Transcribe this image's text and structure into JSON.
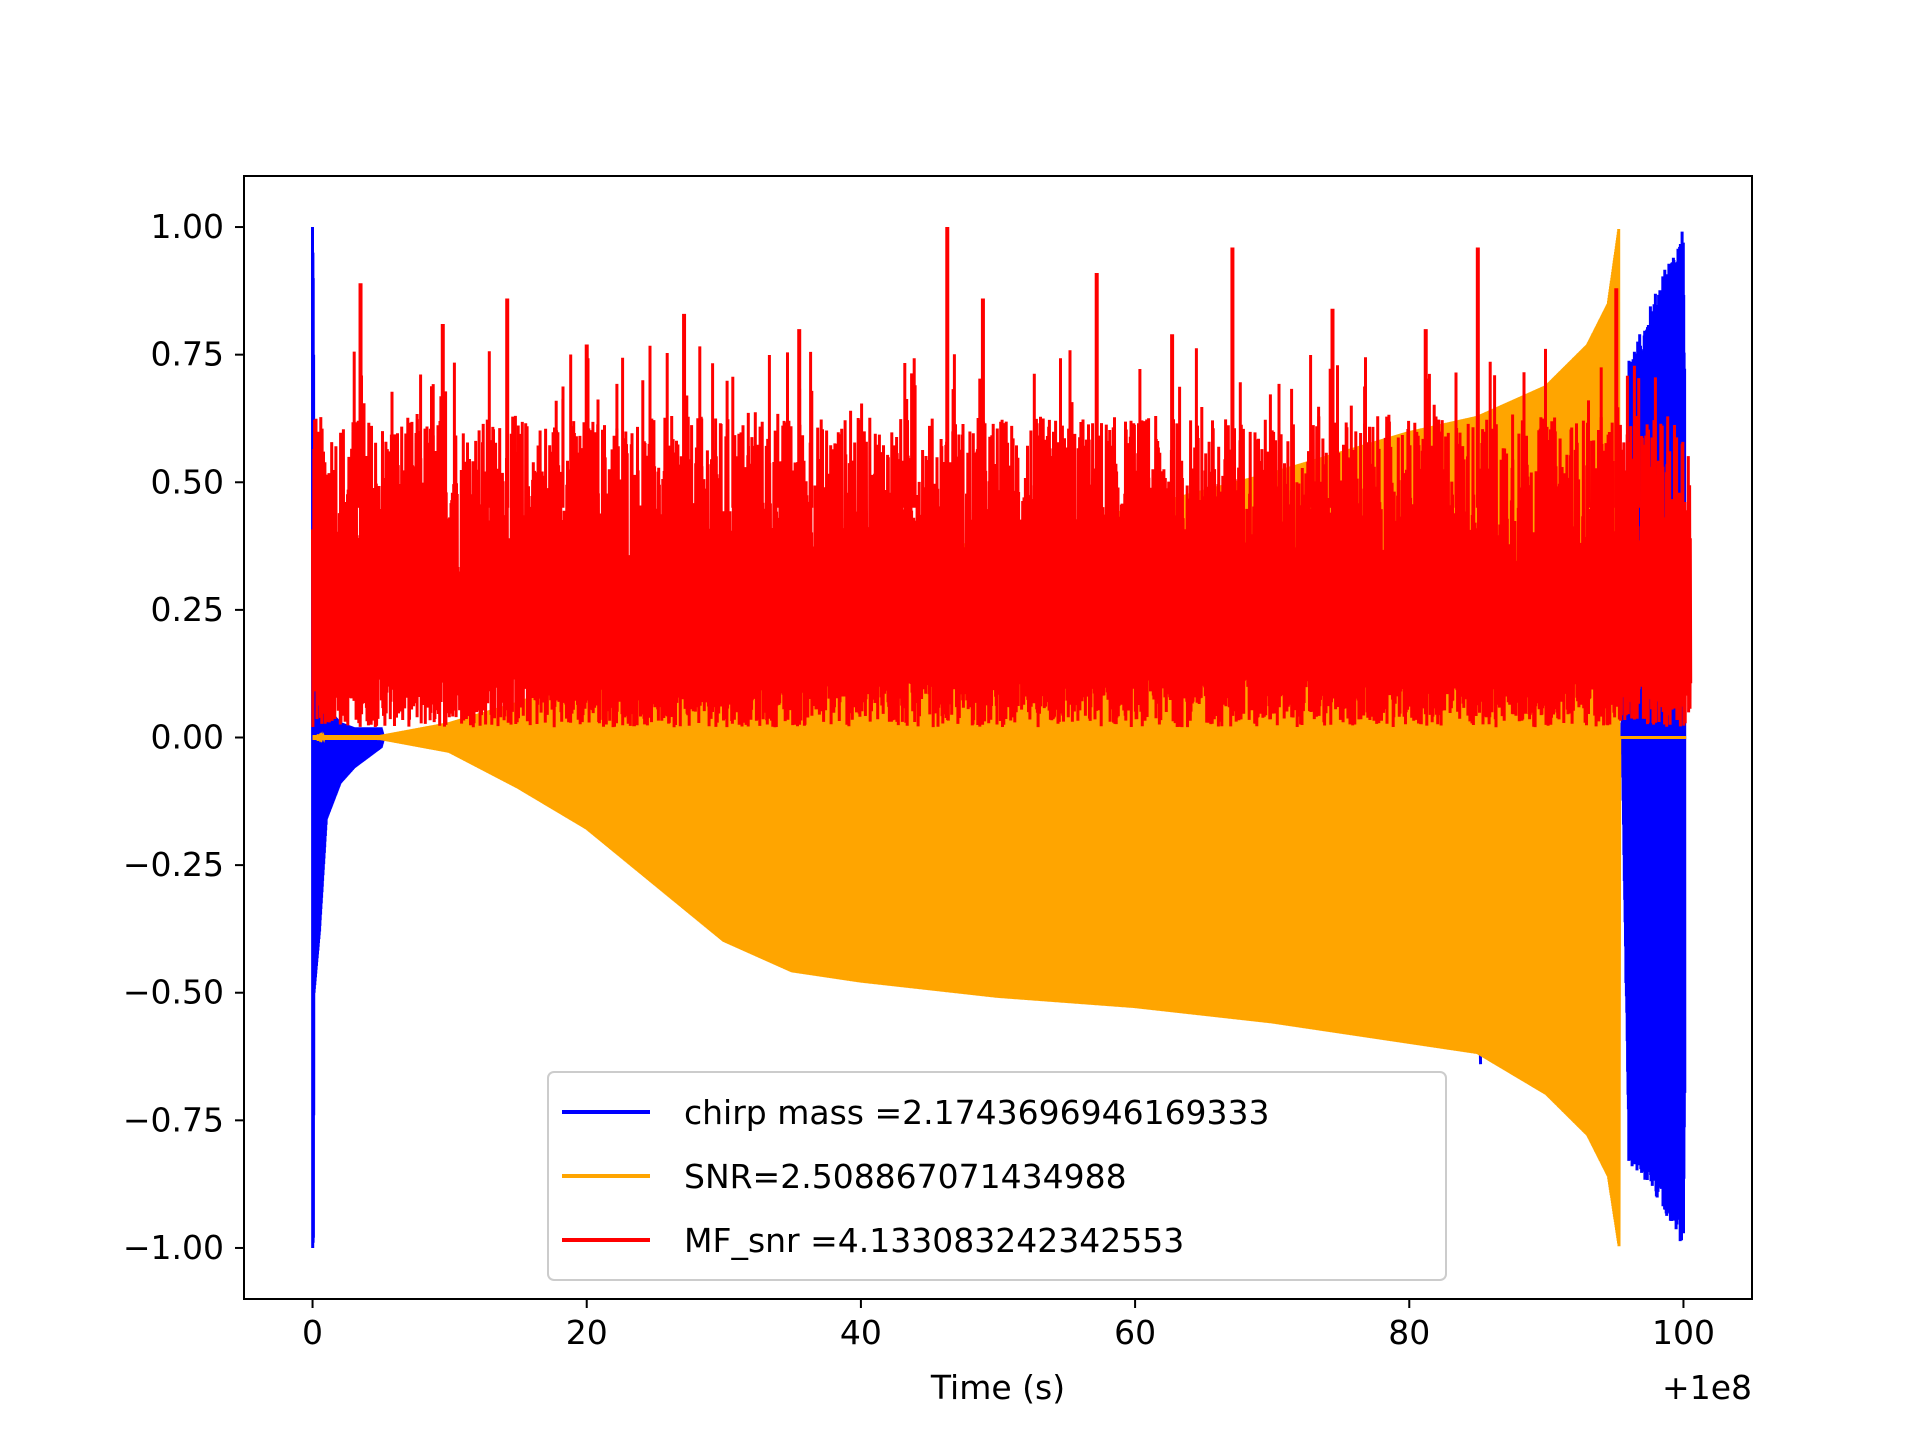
{
  "chart_data": {
    "type": "line",
    "xlabel": "Time (s)",
    "ylabel": "",
    "x_offset_label": "+1e8",
    "xlim": [
      -5,
      105
    ],
    "ylim": [
      -1.1,
      1.1
    ],
    "x_ticks": [
      0,
      20,
      40,
      60,
      80,
      100
    ],
    "x_tick_labels": [
      "0",
      "20",
      "40",
      "60",
      "80",
      "100"
    ],
    "y_ticks": [
      1.0,
      0.75,
      0.5,
      0.25,
      0.0,
      -0.25,
      -0.5,
      -0.75,
      -1.0
    ],
    "y_tick_labels": [
      "1.00",
      "0.75",
      "0.50",
      "0.25",
      "0.00",
      "−0.25",
      "−0.50",
      "−0.75",
      "−1.00"
    ],
    "grid": false,
    "legend_position": "lower-center",
    "series": [
      {
        "name": "chirp mass =2.1743696946169333",
        "color": "#0000ff",
        "description_points": {
          "x": [
            0,
            0.05,
            0.1,
            0.5,
            1,
            2,
            3,
            5,
            5.2,
            95.5,
            96,
            97,
            98,
            99,
            100,
            100.3
          ],
          "y_upper": [
            1.0,
            0.9,
            0.6,
            0.12,
            0.06,
            0.03,
            0.02,
            0.02,
            0.0,
            0.0,
            0.75,
            0.8,
            0.88,
            0.94,
            1.0,
            0.0
          ],
          "y_lower": [
            -1.0,
            -0.98,
            -0.5,
            -0.38,
            -0.16,
            -0.09,
            -0.06,
            -0.02,
            0.0,
            0.0,
            -0.84,
            -0.86,
            -0.9,
            -0.95,
            -1.0,
            0.0
          ]
        }
      },
      {
        "name": "SNR=2.508867071434988",
        "color": "#ffa500",
        "envelope": {
          "x": [
            0,
            5,
            10,
            15,
            20,
            25,
            30,
            35,
            40,
            50,
            60,
            70,
            80,
            85,
            90,
            93,
            94.5,
            95.3
          ],
          "y_upper": [
            0.0,
            0.005,
            0.03,
            0.07,
            0.12,
            0.18,
            0.25,
            0.31,
            0.35,
            0.39,
            0.45,
            0.52,
            0.6,
            0.63,
            0.69,
            0.77,
            0.85,
            1.0
          ],
          "y_lower": [
            0.0,
            -0.005,
            -0.03,
            -0.1,
            -0.18,
            -0.29,
            -0.4,
            -0.46,
            -0.48,
            -0.51,
            -0.53,
            -0.56,
            -0.6,
            -0.62,
            -0.7,
            -0.78,
            -0.86,
            -1.0
          ]
        }
      },
      {
        "name": "MF_snr =4.133083242342553",
        "color": "#ff0000",
        "band": {
          "x_start": 0,
          "x_end": 100.5,
          "y_min": 0.02,
          "y_typical_max": 0.58
        },
        "spikes": [
          {
            "x": 46.3,
            "y": 1.0
          },
          {
            "x": 67.1,
            "y": 0.96
          },
          {
            "x": 85.0,
            "y": 0.96
          },
          {
            "x": 57.2,
            "y": 0.91
          },
          {
            "x": 3.5,
            "y": 0.89
          },
          {
            "x": 14.2,
            "y": 0.86
          },
          {
            "x": 27.1,
            "y": 0.83
          },
          {
            "x": 74.4,
            "y": 0.84
          },
          {
            "x": 48.9,
            "y": 0.86
          },
          {
            "x": 9.5,
            "y": 0.81
          },
          {
            "x": 95.1,
            "y": 0.88
          },
          {
            "x": 35.5,
            "y": 0.8
          },
          {
            "x": 62.7,
            "y": 0.79
          },
          {
            "x": 20.0,
            "y": 0.77
          },
          {
            "x": 81.2,
            "y": 0.8
          }
        ]
      }
    ]
  }
}
